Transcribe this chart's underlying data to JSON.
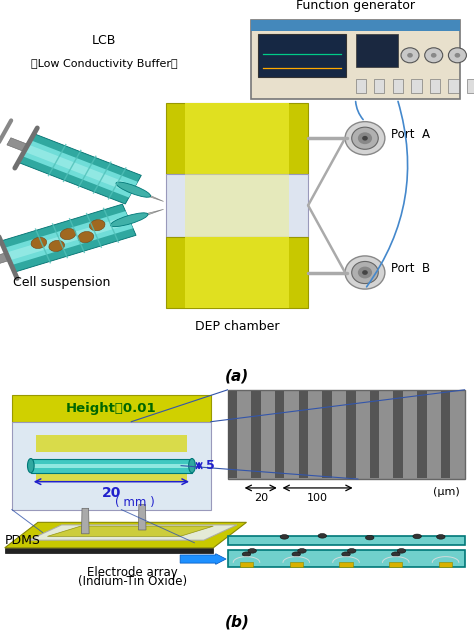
{
  "fig_width": 4.74,
  "fig_height": 6.37,
  "dpi": 100,
  "bg_color": "#ffffff",
  "panel_a_label": "(a)",
  "panel_b_label": "(b)",
  "title_fg": "Function generator",
  "label_lcb_line1": "LCB",
  "label_lcb_line2": "（Low Conductivity Buffer）",
  "label_cell": "Cell suspension",
  "label_dep": "DEP chamber",
  "label_porta": "Port  A",
  "label_portb": "Port  B",
  "label_height": "Height：0.01",
  "label_5": "5",
  "label_20": "20",
  "label_mm": "( mm )",
  "label_pdms": "PDMS",
  "label_electrode": "Electrode array",
  "label_electrode2": "(Indium-Tin Oxide)",
  "label_um": "(μm)",
  "label_20um": "20",
  "label_100um": "100",
  "yellow_dep": "#d4d400",
  "yellow_light": "#eaea60",
  "teal_body": "#50d0c8",
  "teal_dark": "#008888",
  "teal_highlight": "#80e8e0",
  "blue_wire": "#4488cc",
  "dim_blue": "#2020cc",
  "port_gray": "#b8b8b8",
  "fg_body": "#d8dce8",
  "fg_blue": "#3366aa"
}
